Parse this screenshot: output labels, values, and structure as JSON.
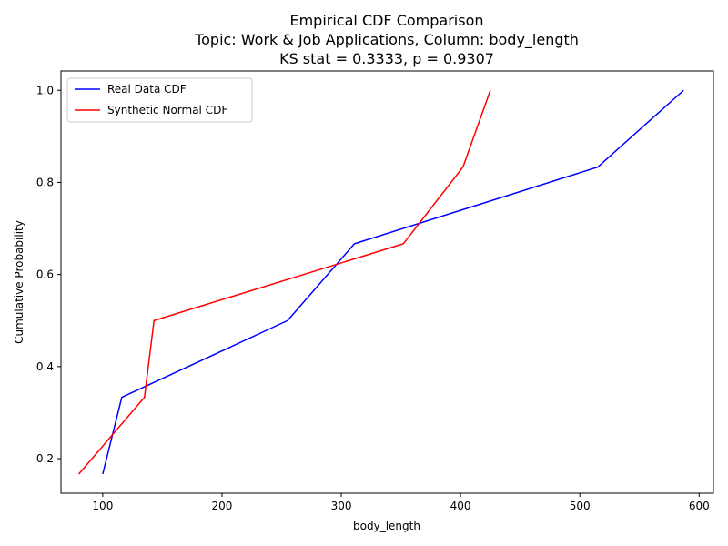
{
  "chart_data": {
    "type": "line",
    "title": [
      "Empirical CDF Comparison",
      "Topic: Work & Job Applications, Column: body_length",
      "KS stat = 0.3333, p = 0.9307"
    ],
    "xlabel": "body_length",
    "ylabel": "Cumulative Probability",
    "xlim": [
      65,
      612
    ],
    "ylim": [
      0.125,
      1.042
    ],
    "xticks": [
      100,
      200,
      300,
      400,
      500,
      600
    ],
    "xtick_labels": [
      "100",
      "200",
      "300",
      "400",
      "500",
      "600"
    ],
    "yticks": [
      0.2,
      0.4,
      0.6,
      0.8,
      1.0
    ],
    "ytick_labels": [
      "0.2",
      "0.4",
      "0.6",
      "0.8",
      "1.0"
    ],
    "grid": false,
    "legend_position": "top-left",
    "series": [
      {
        "name": "Real Data CDF",
        "color": "#0000ff",
        "x": [
          100,
          116,
          255,
          311,
          515,
          587
        ],
        "y": [
          0.1667,
          0.3333,
          0.5,
          0.6667,
          0.8333,
          1.0
        ]
      },
      {
        "name": "Synthetic Normal CDF",
        "color": "#ff0000",
        "x": [
          80,
          135,
          143,
          352,
          402,
          425
        ],
        "y": [
          0.1667,
          0.3333,
          0.5,
          0.6667,
          0.8333,
          1.0
        ]
      }
    ]
  }
}
